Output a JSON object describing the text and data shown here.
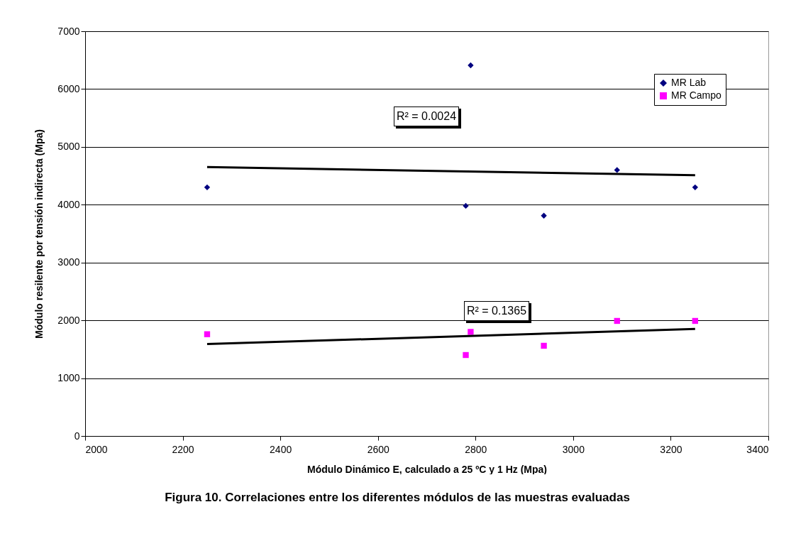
{
  "chart_data": {
    "type": "scatter",
    "xlabel": "Módulo Dinámico E, calculado a 25 ºC y 1 Hz (Mpa)",
    "ylabel": "Módulo resilente por tensión indirecta (Mpa)",
    "xlim": [
      2000,
      3400
    ],
    "xticks": [
      2000,
      2200,
      2400,
      2600,
      2800,
      3000,
      3200,
      3400
    ],
    "ylim": [
      0,
      7000
    ],
    "yticks": [
      0,
      1000,
      2000,
      3000,
      4000,
      5000,
      6000,
      7000
    ],
    "grid": "y",
    "legend": "top right",
    "series": [
      {
        "name": "MR Lab",
        "color": "#000080",
        "marker": "diamond",
        "x": [
          2250,
          2790,
          2780,
          2940,
          3090,
          3250
        ],
        "values": [
          4300,
          6410,
          3980,
          3810,
          4600,
          4300
        ]
      },
      {
        "name": "MR Campo",
        "color": "#ff00ff",
        "marker": "square",
        "x": [
          2250,
          2790,
          2780,
          2940,
          3090,
          3250
        ],
        "values": [
          1760,
          1800,
          1400,
          1560,
          1990,
          1990
        ]
      },
      {
        "type": "line",
        "color": "#000000",
        "x": [
          2250,
          3250
        ],
        "values": [
          4650,
          4510
        ]
      },
      {
        "type": "line",
        "color": "#000000",
        "x": [
          2250,
          3250
        ],
        "values": [
          1590,
          1850
        ]
      }
    ],
    "annotations": [
      "R² = 0.0024",
      "R² = 0.1365",
      "Figura 10. Correlaciones entre los diferentes módulos de las muestras evaluadas"
    ]
  }
}
